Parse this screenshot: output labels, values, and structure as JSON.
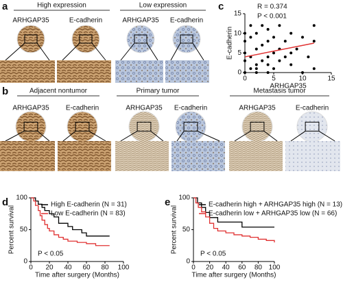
{
  "panels": {
    "a": {
      "label": "a",
      "groups": [
        "High expression",
        "Low expression"
      ],
      "stains": [
        "ARHGAP35",
        "E-cadherin",
        "ARHGAP35",
        "E-cadherin"
      ]
    },
    "b": {
      "label": "b",
      "groups": [
        "Adjacent nontumor",
        "Primary tumor",
        "Metastasis tumor"
      ],
      "stains": [
        "ARHGAP35",
        "E-cadherin",
        "ARHGAP35",
        "E-cadherin",
        "ARHGAP35",
        "E-cadherin"
      ]
    }
  },
  "chart_data": [
    {
      "type": "scatter",
      "label": "c",
      "annotations": [
        "R = 0.374",
        "P < 0.001"
      ],
      "x_label": "ARHGAP35",
      "y_label": "E-cadherin",
      "x": [
        0,
        0,
        0,
        0,
        1,
        1,
        1,
        1,
        2,
        2,
        2,
        2,
        3,
        3,
        3,
        4,
        4,
        4,
        4,
        5,
        5,
        5,
        6,
        6,
        6,
        7,
        7,
        8,
        8,
        9,
        10,
        10,
        11,
        12,
        12,
        12,
        0,
        2,
        4,
        8
      ],
      "values": [
        0,
        3,
        5,
        8,
        1,
        4,
        9,
        12,
        0,
        2,
        6,
        10,
        3,
        7,
        12,
        0,
        4,
        8,
        11,
        1,
        5,
        9,
        3,
        6,
        12,
        4,
        8,
        2,
        10,
        6,
        0,
        9,
        4,
        1,
        12,
        8,
        10,
        1,
        2,
        5
      ],
      "color": "#000000",
      "fit": {
        "x": [
          0,
          12
        ],
        "y": [
          4,
          7.5
        ],
        "color": "#e03030"
      },
      "xlim": [
        0,
        15
      ],
      "ylim": [
        0,
        15
      ],
      "xticks": [
        0,
        5,
        10,
        15
      ],
      "yticks": [
        0,
        5,
        10,
        15
      ]
    },
    {
      "type": "line",
      "label": "d",
      "annotations": [
        "P < 0.05"
      ],
      "x_label": "Time after surgery (Months)",
      "y_label": "Percent survival",
      "series": [
        {
          "name": "High E-cadherin (N = 31)",
          "color": "#000000",
          "x": [
            0,
            5,
            8,
            12,
            15,
            20,
            25,
            30,
            40,
            45,
            55,
            60,
            85
          ],
          "values": [
            100,
            95,
            90,
            85,
            80,
            75,
            70,
            60,
            55,
            50,
            45,
            40,
            40
          ]
        },
        {
          "name": "Low E-cadherin (N = 83)",
          "color": "#e03030",
          "x": [
            0,
            3,
            5,
            8,
            10,
            12,
            15,
            18,
            20,
            25,
            30,
            35,
            40,
            50,
            60,
            70,
            85
          ],
          "values": [
            100,
            95,
            88,
            80,
            72,
            65,
            58,
            52,
            48,
            42,
            38,
            35,
            32,
            30,
            28,
            25,
            25
          ]
        }
      ],
      "xlim": [
        0,
        100
      ],
      "ylim": [
        0,
        100
      ],
      "xticks": [
        0,
        20,
        40,
        60,
        80,
        100
      ],
      "yticks": [
        0,
        50,
        100
      ]
    },
    {
      "type": "line",
      "label": "e",
      "annotations": [
        "P < 0.05"
      ],
      "x_label": "Time after surgery (Months)",
      "y_label": "Percent survival",
      "series": [
        {
          "name": "E-cadherin high + ARHGAP35 high (N = 13)",
          "color": "#000000",
          "x": [
            0,
            5,
            10,
            15,
            20,
            30,
            60,
            100
          ],
          "values": [
            100,
            92,
            85,
            77,
            69,
            62,
            54,
            54
          ]
        },
        {
          "name": "E-cadherin low + ARHGAP35 low (N = 66)",
          "color": "#e03030",
          "x": [
            0,
            3,
            6,
            10,
            15,
            20,
            25,
            30,
            40,
            50,
            60,
            70,
            80,
            90,
            100
          ],
          "values": [
            100,
            92,
            85,
            78,
            70,
            60,
            52,
            48,
            45,
            42,
            40,
            38,
            35,
            33,
            30
          ]
        }
      ],
      "xlim": [
        0,
        100
      ],
      "ylim": [
        0,
        100
      ],
      "xticks": [
        0,
        20,
        40,
        60,
        80,
        100
      ],
      "yticks": [
        0,
        50,
        100
      ]
    }
  ]
}
